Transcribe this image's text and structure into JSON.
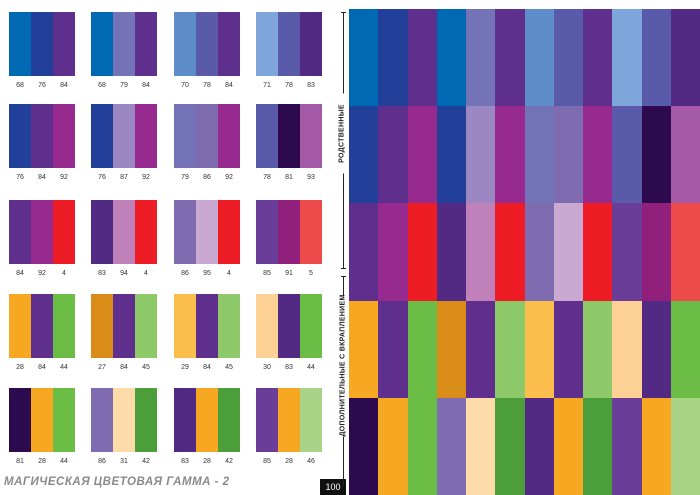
{
  "colors": {
    "4": "#ee1c25",
    "5": "#ed4a4a",
    "27": "#d98c18",
    "28": "#f6a823",
    "29": "#fbbd4c",
    "30": "#fdd094",
    "31": "#fddcaa",
    "42": "#4b9e3a",
    "43": "#62ae48",
    "44": "#6cbd45",
    "45": "#8dc968",
    "46": "#a9d387",
    "68": "#0069b4",
    "70": "#5e8dc9",
    "71": "#7fa6db",
    "76": "#22409a",
    "78": "#5a5aaa",
    "79": "#7473b8",
    "81": "#2d0a4e",
    "83": "#522a83",
    "84": "#5e2f8d",
    "85": "#6a3d99",
    "86": "#7e6bb0",
    "87": "#9b87c1",
    "91": "#91207c",
    "92": "#962a8f",
    "93": "#a45aa6",
    "94": "#c080ba",
    "95": "#c9a8d2"
  },
  "swatches": [
    [
      [
        "68",
        "76",
        "84"
      ],
      [
        "68",
        "79",
        "84"
      ],
      [
        "70",
        "78",
        "84"
      ],
      [
        "71",
        "78",
        "83"
      ]
    ],
    [
      [
        "76",
        "84",
        "92"
      ],
      [
        "76",
        "87",
        "92"
      ],
      [
        "79",
        "86",
        "92"
      ],
      [
        "78",
        "81",
        "93"
      ]
    ],
    [
      [
        "84",
        "92",
        "4"
      ],
      [
        "83",
        "94",
        "4"
      ],
      [
        "86",
        "95",
        "4"
      ],
      [
        "85",
        "91",
        "5"
      ]
    ],
    [
      [
        "28",
        "84",
        "44"
      ],
      [
        "27",
        "84",
        "45"
      ],
      [
        "29",
        "84",
        "45"
      ],
      [
        "30",
        "83",
        "44"
      ]
    ],
    [
      [
        "81",
        "28",
        "44"
      ],
      [
        "86",
        "31",
        "42"
      ],
      [
        "83",
        "28",
        "42"
      ],
      [
        "85",
        "28",
        "46"
      ]
    ]
  ],
  "labels": {
    "related": "РОДСТВЕННЫЕ",
    "complementary": "ДОПОЛНИТЕЛЬНЫЕ С ВКРАПЛЕНИЕМ"
  },
  "footer": {
    "title": "МАГИЧЕСКАЯ ЦВЕТОВАЯ ГАММА - 2",
    "page": "100"
  }
}
